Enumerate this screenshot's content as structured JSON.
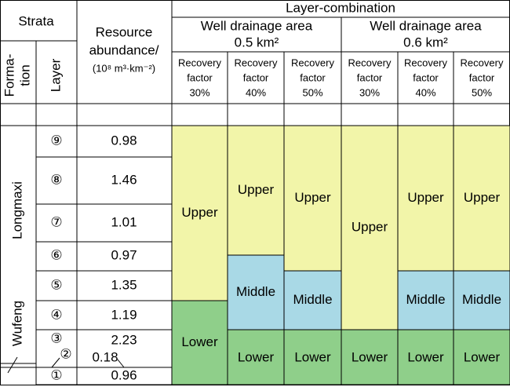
{
  "header": {
    "strata": "Strata",
    "formation": [
      "Forma-",
      "tion"
    ],
    "layer": "Layer",
    "resource": [
      "Resource",
      "abundance/",
      "(10⁸ m³·km⁻²)"
    ],
    "combination": "Layer-combination"
  },
  "formations": [
    "Longmaxi",
    "Wufeng"
  ],
  "layers": [
    {
      "layer": "⑨",
      "abundance": 0.98
    },
    {
      "layer": "⑧",
      "abundance": 1.46
    },
    {
      "layer": "⑦",
      "abundance": 1.01
    },
    {
      "layer": "⑥",
      "abundance": 0.97
    },
    {
      "layer": "⑤",
      "abundance": 1.35
    },
    {
      "layer": "④",
      "abundance": 1.19
    },
    {
      "layer": "③",
      "abundance": 2.23
    },
    {
      "layer": "②",
      "abundance": 0.18
    },
    {
      "layer": "①",
      "abundance": 0.96
    }
  ],
  "drainage_areas": [
    {
      "label": [
        "Well drainage area",
        "0.5 km²"
      ],
      "columns": [
        {
          "recovery": [
            "Recovery",
            "factor",
            "30%"
          ],
          "segments": [
            "Upper",
            "Lower"
          ]
        },
        {
          "recovery": [
            "Recovery",
            "factor",
            "40%"
          ],
          "segments": [
            "Upper",
            "Middle",
            "Lower"
          ]
        },
        {
          "recovery": [
            "Recovery",
            "factor",
            "50%"
          ],
          "segments": [
            "Upper",
            "Middle",
            "Lower"
          ]
        }
      ]
    },
    {
      "label": [
        "Well drainage area",
        "0.6 km²"
      ],
      "columns": [
        {
          "recovery": [
            "Recovery",
            "factor",
            "30%"
          ],
          "segments": [
            "Upper",
            "Lower"
          ]
        },
        {
          "recovery": [
            "Recovery",
            "factor",
            "40%"
          ],
          "segments": [
            "Upper",
            "Middle",
            "Lower"
          ]
        },
        {
          "recovery": [
            "Recovery",
            "factor",
            "50%"
          ],
          "segments": [
            "Upper",
            "Middle",
            "Lower"
          ]
        }
      ]
    }
  ]
}
